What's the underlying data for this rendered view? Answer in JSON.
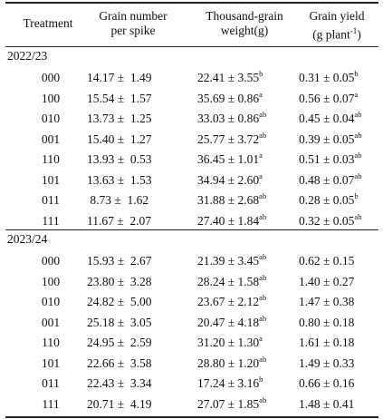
{
  "headers": {
    "treatment": "Treatment",
    "grain_number_l1": "Grain number",
    "grain_number_l2": "per spike",
    "tgw_l1": "Thousand-grain",
    "tgw_l2": "weight(g)",
    "yield_l1": "Grain yield",
    "yield_l2_pre": "(g plant",
    "yield_l2_sup": "-1",
    "yield_l2_post": ")"
  },
  "sections": [
    {
      "label": "2022/23",
      "rows": [
        {
          "treatment": "000",
          "gn": "14.17 ±  1.49",
          "tgw": "22.41 ± 3.55",
          "tgw_sig": "b",
          "gy": "0.31 ± 0.05",
          "gy_sig": "b"
        },
        {
          "treatment": "100",
          "gn": "15.54 ±  1.57",
          "tgw": "35.69 ± 0.86",
          "tgw_sig": "a",
          "gy": "0.56 ± 0.07",
          "gy_sig": "a"
        },
        {
          "treatment": "010",
          "gn": "13.73 ±  1.25",
          "tgw": "33.03 ± 0.86",
          "tgw_sig": "ab",
          "gy": "0.45 ± 0.04",
          "gy_sig": "ab"
        },
        {
          "treatment": "001",
          "gn": "15.40 ±  1.27",
          "tgw": "25.77 ± 3.72",
          "tgw_sig": "ab",
          "gy": "0.39 ± 0.05",
          "gy_sig": "ab"
        },
        {
          "treatment": "110",
          "gn": "13.93 ±  0.53",
          "tgw": "36.45 ± 1.01",
          "tgw_sig": "a",
          "gy": "0.51 ± 0.03",
          "gy_sig": "ab"
        },
        {
          "treatment": "101",
          "gn": "13.63 ±  1.53",
          "tgw": "34.94 ± 2.60",
          "tgw_sig": "a",
          "gy": "0.48 ± 0.07",
          "gy_sig": "ab"
        },
        {
          "treatment": "011",
          "gn": " 8.73 ±  1.62",
          "tgw": "31.88 ± 2.68",
          "tgw_sig": "ab",
          "gy": "0.28 ± 0.05",
          "gy_sig": "b"
        },
        {
          "treatment": "111",
          "gn": "11.67 ±  2.07",
          "tgw": "27.40 ± 1.84",
          "tgw_sig": "ab",
          "gy": "0.32 ± 0.05",
          "gy_sig": "ab"
        }
      ]
    },
    {
      "label": "2023/24",
      "rows": [
        {
          "treatment": "000",
          "gn": "15.93 ±  2.67",
          "tgw": "21.39 ± 3.45",
          "tgw_sig": "ab",
          "gy": "0.62 ± 0.15",
          "gy_sig": ""
        },
        {
          "treatment": "100",
          "gn": "23.80 ±  3.28",
          "tgw": "28.24 ± 1.58",
          "tgw_sig": "ab",
          "gy": "1.40 ± 0.27",
          "gy_sig": ""
        },
        {
          "treatment": "010",
          "gn": "24.82 ±  5.00",
          "tgw": "23.67 ± 2.12",
          "tgw_sig": "ab",
          "gy": "1.47 ± 0.38",
          "gy_sig": ""
        },
        {
          "treatment": "001",
          "gn": "25.18 ±  3.05",
          "tgw": "20.47 ± 4.18",
          "tgw_sig": "ab",
          "gy": "0.80 ± 0.18",
          "gy_sig": ""
        },
        {
          "treatment": "110",
          "gn": "24.95 ±  2.59",
          "tgw": "31.20 ± 1.30",
          "tgw_sig": "a",
          "gy": "1.61 ± 0.18",
          "gy_sig": ""
        },
        {
          "treatment": "101",
          "gn": "22.66 ±  3.58",
          "tgw": "28.80 ± 1.20",
          "tgw_sig": "ab",
          "gy": "1.49 ± 0.33",
          "gy_sig": ""
        },
        {
          "treatment": "011",
          "gn": "22.43 ±  3.34",
          "tgw": "17.24 ± 3.16",
          "tgw_sig": "b",
          "gy": "0.66 ± 0.16",
          "gy_sig": ""
        },
        {
          "treatment": "111",
          "gn": "20.71 ±  4.19",
          "tgw": "27.07 ± 1.85",
          "tgw_sig": "ab",
          "gy": "1.48 ± 0.41",
          "gy_sig": ""
        }
      ]
    }
  ]
}
